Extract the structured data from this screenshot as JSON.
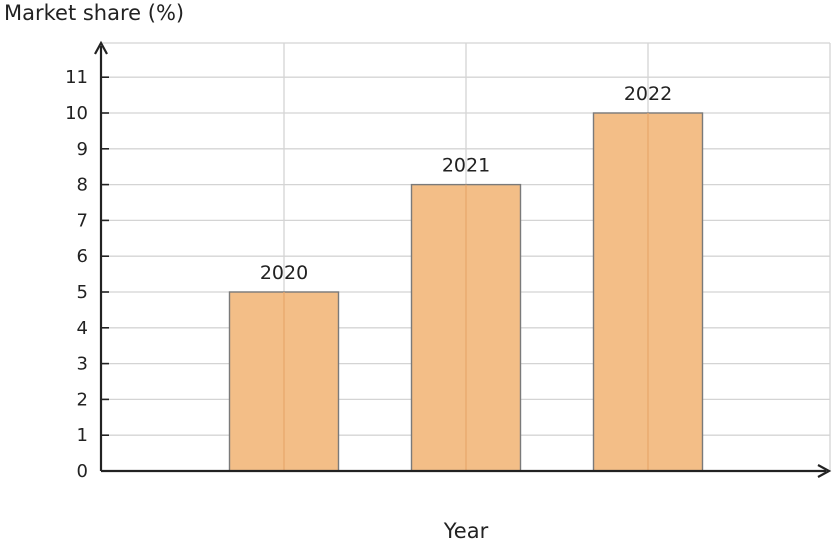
{
  "chart_data": {
    "type": "bar",
    "categories": [
      "2020",
      "2021",
      "2022"
    ],
    "values": [
      5,
      8,
      10
    ],
    "data_labels": [
      "2020",
      "2021",
      "2022"
    ],
    "xlabel": "Year",
    "ylabel": "Market share (%)",
    "ylim": [
      0,
      11
    ],
    "yticks": [
      0,
      1,
      2,
      3,
      4,
      5,
      6,
      7,
      8,
      9,
      10,
      11
    ],
    "grid": true,
    "bar_color": "#f3be87",
    "bar_edge_color": "#7a7a7a"
  }
}
